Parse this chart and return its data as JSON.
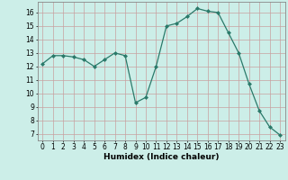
{
  "x": [
    0,
    1,
    2,
    3,
    4,
    5,
    6,
    7,
    8,
    9,
    10,
    11,
    12,
    13,
    14,
    15,
    16,
    17,
    18,
    19,
    20,
    21,
    22,
    23
  ],
  "y": [
    12.2,
    12.8,
    12.8,
    12.7,
    12.5,
    12.0,
    12.5,
    13.0,
    12.8,
    9.3,
    9.7,
    12.0,
    15.0,
    15.2,
    15.7,
    16.3,
    16.1,
    16.0,
    14.5,
    13.0,
    10.7,
    8.7,
    7.5,
    6.9
  ],
  "xlabel": "Humidex (Indice chaleur)",
  "xlim": [
    -0.5,
    23.5
  ],
  "ylim": [
    6.5,
    16.8
  ],
  "yticks": [
    7,
    8,
    9,
    10,
    11,
    12,
    13,
    14,
    15,
    16
  ],
  "xticks": [
    0,
    1,
    2,
    3,
    4,
    5,
    6,
    7,
    8,
    9,
    10,
    11,
    12,
    13,
    14,
    15,
    16,
    17,
    18,
    19,
    20,
    21,
    22,
    23
  ],
  "line_color": "#2a7a6a",
  "marker_color": "#2a7a6a",
  "bg_color": "#cceee8",
  "grid_color_major": "#b0b0b0",
  "grid_color_minor": "#d8d8d8",
  "tick_fontsize": 5.5,
  "label_fontsize": 6.5
}
